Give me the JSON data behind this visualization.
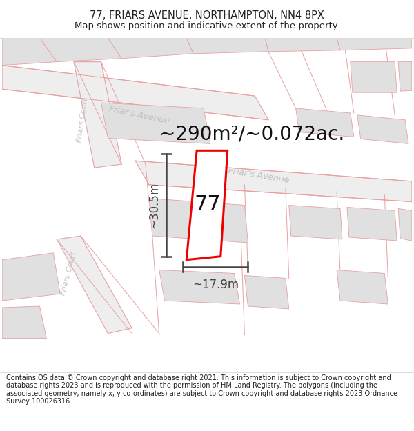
{
  "title": "77, FRIARS AVENUE, NORTHAMPTON, NN4 8PX",
  "subtitle": "Map shows position and indicative extent of the property.",
  "footer": "Contains OS data © Crown copyright and database right 2021. This information is subject to Crown copyright and database rights 2023 and is reproduced with the permission of HM Land Registry. The polygons (including the associated geometry, namely x, y co-ordinates) are subject to Crown copyright and database rights 2023 Ordnance Survey 100026316.",
  "area_label": "~290m²/~0.072ac.",
  "width_label": "~17.9m",
  "height_label": "~30.5m",
  "property_number": "77",
  "bg_color": "#ffffff",
  "map_bg": "#ffffff",
  "road_fill": "#eeeeee",
  "building_fill": "#e0e0e0",
  "road_stroke": "#e8a0a0",
  "property_stroke": "#ee0000",
  "property_fill": "#ffffff",
  "dim_color": "#444444",
  "road_label_color": "#c0c0c0",
  "title_fontsize": 10.5,
  "subtitle_fontsize": 9.5,
  "footer_fontsize": 7.0,
  "area_fontsize": 20,
  "dim_label_fontsize": 12,
  "property_label_fontsize": 22
}
